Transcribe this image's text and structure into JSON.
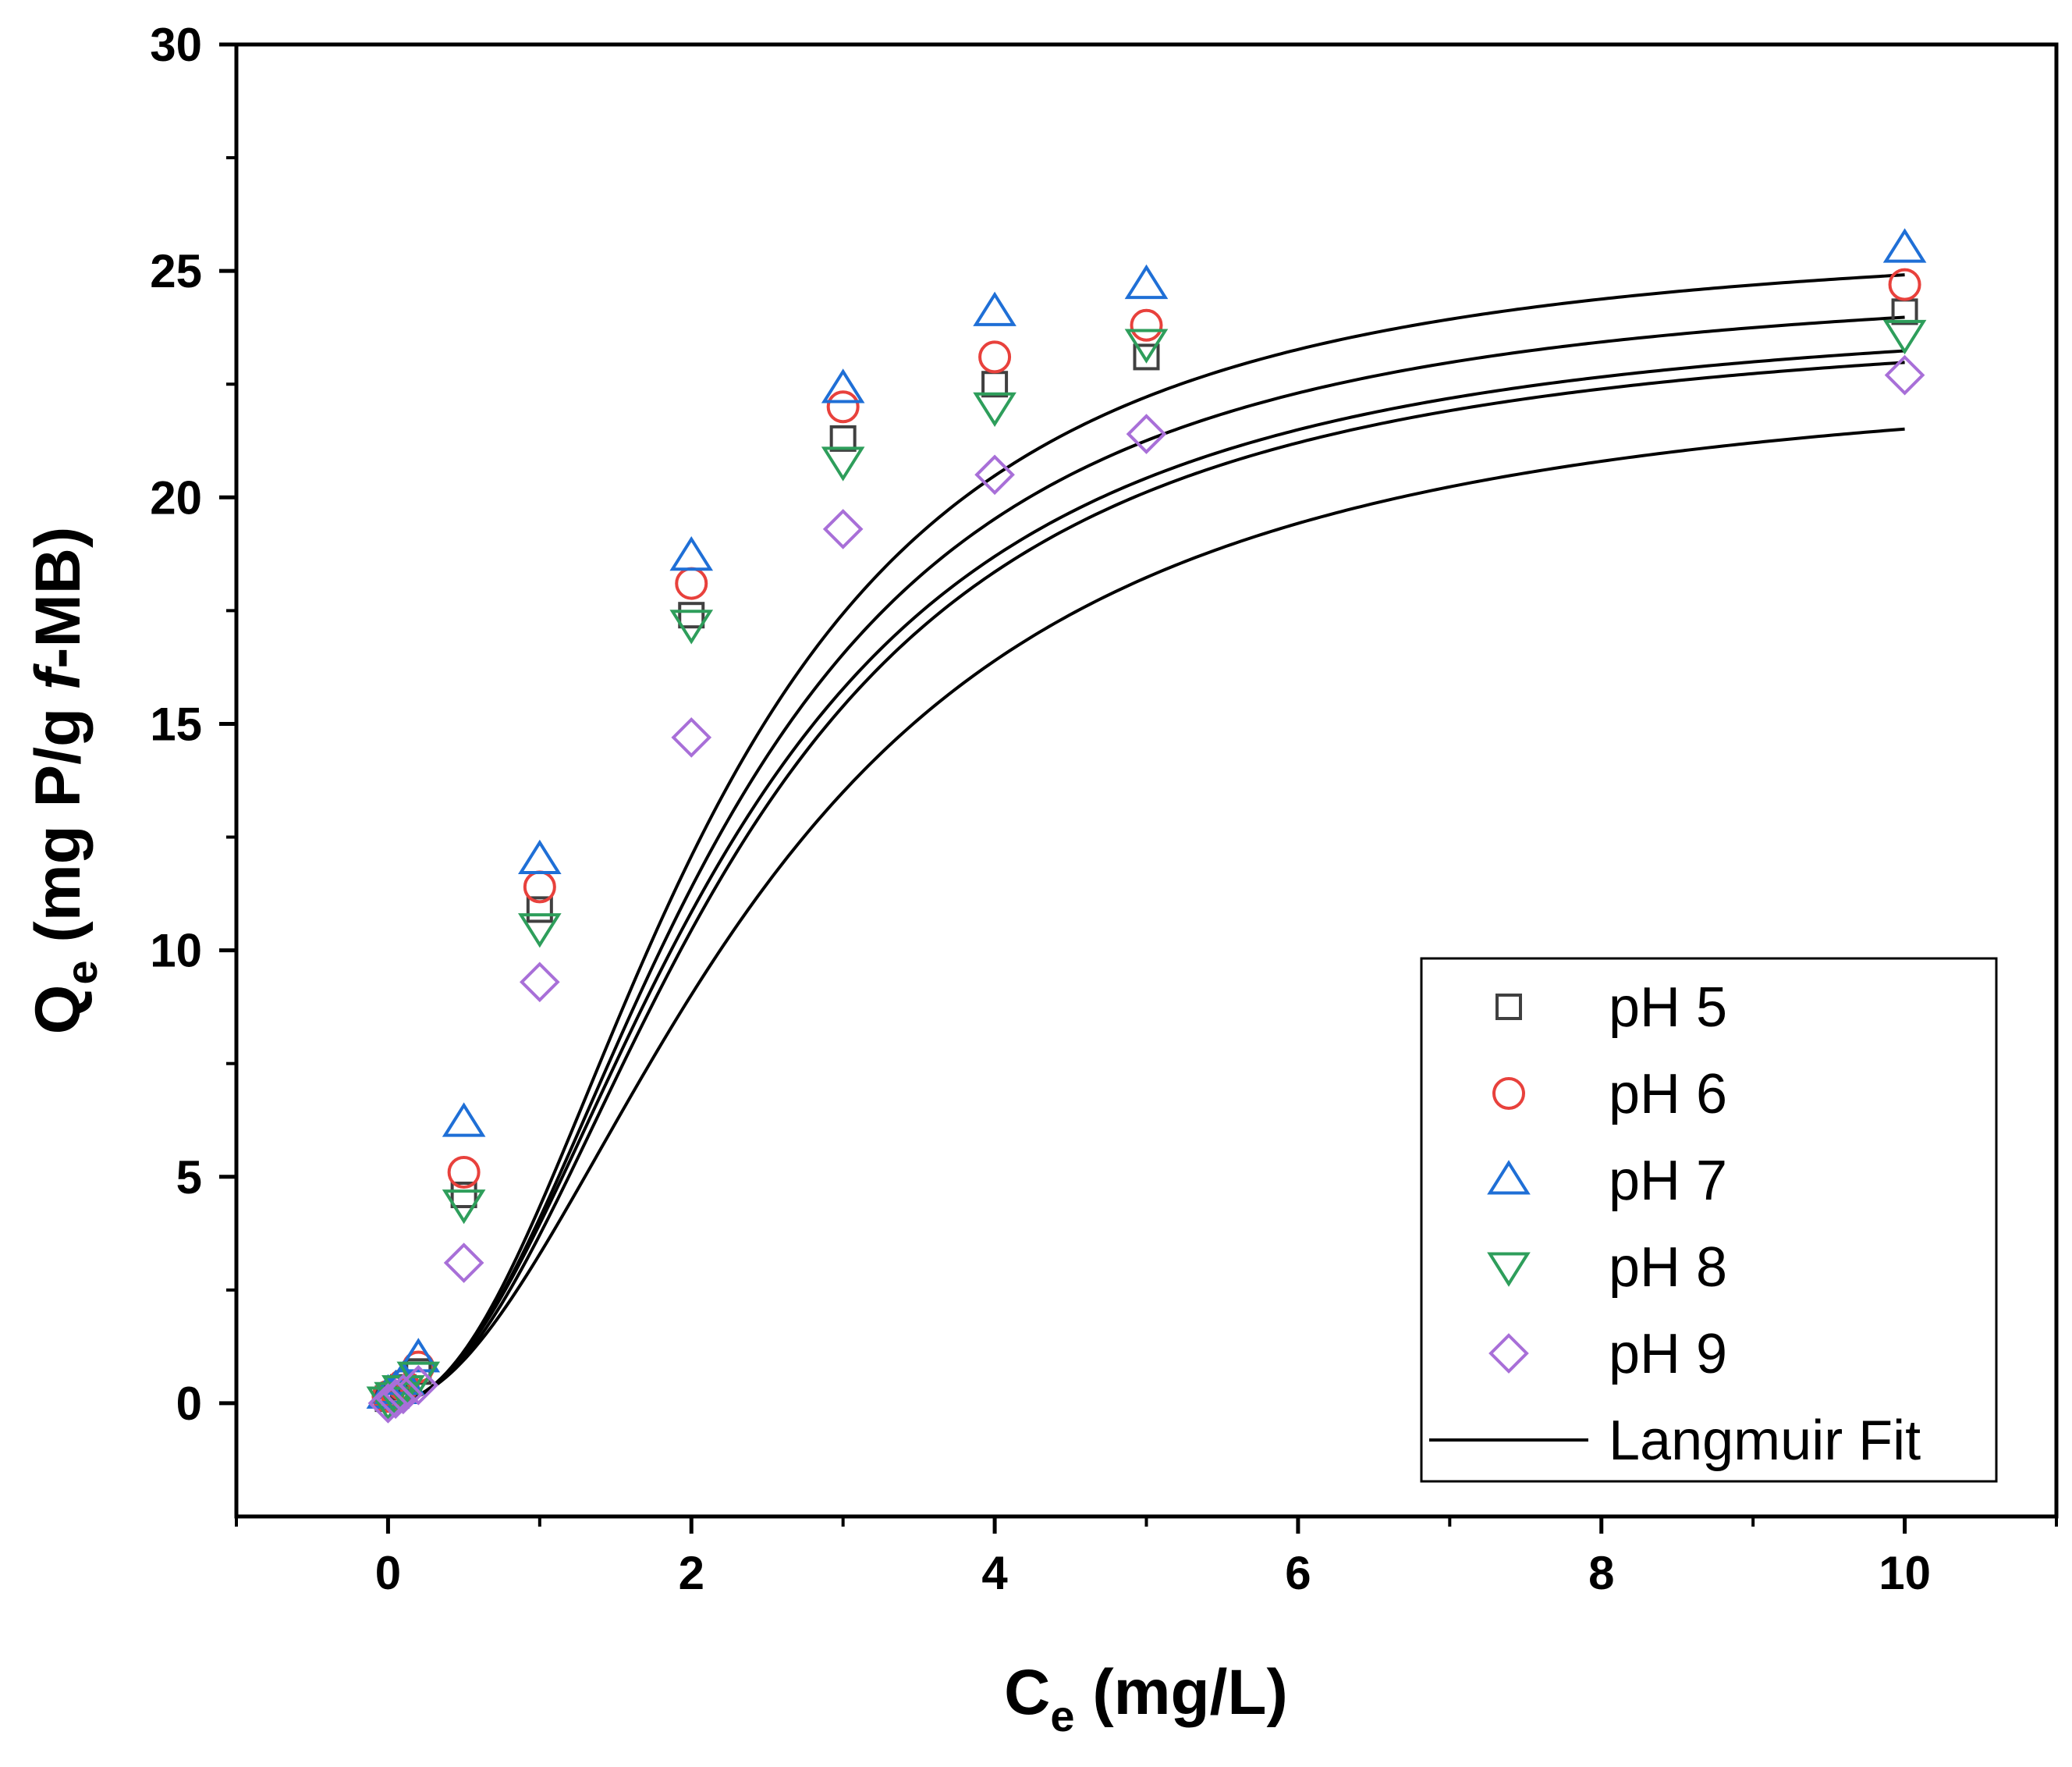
{
  "chart_data": {
    "type": "scatter",
    "title": "",
    "xlabel": {
      "main": "C",
      "sub": "e",
      "rest": " (mg/L)"
    },
    "ylabel": {
      "main": "Q",
      "sub": "e",
      "pre_italic": " (mg P/g ",
      "italic": "f",
      "post_italic": "-MB)"
    },
    "xlim": [
      -1,
      11
    ],
    "ylim": [
      -2.5,
      30
    ],
    "xticks": [
      0,
      2,
      4,
      6,
      8,
      10
    ],
    "yticks": [
      0,
      5,
      10,
      15,
      20,
      25,
      30
    ],
    "xtick_labels": [
      "0",
      "2",
      "4",
      "6",
      "8",
      "10"
    ],
    "ytick_labels": [
      "0",
      "5",
      "10",
      "15",
      "20",
      "25",
      "30"
    ],
    "grid": false,
    "legend_position": "bottom-right",
    "series": [
      {
        "name": "pH 5",
        "marker": "square",
        "color": "#404040",
        "x": [
          0,
          0.05,
          0.1,
          0.2,
          0.5,
          1,
          2,
          3,
          4,
          5,
          10
        ],
        "y": [
          0.1,
          0.2,
          0.35,
          0.7,
          4.6,
          10.9,
          17.4,
          21.3,
          22.5,
          23.1,
          24.1
        ],
        "fit": {
          "qmax": 24.3,
          "k": 0.45,
          "n": 2.05
        }
      },
      {
        "name": "pH 6",
        "marker": "circle",
        "color": "#e8413c",
        "x": [
          0,
          0.05,
          0.1,
          0.2,
          0.5,
          1,
          2,
          3,
          4,
          5,
          10
        ],
        "y": [
          0.15,
          0.25,
          0.4,
          0.8,
          5.1,
          11.4,
          18.1,
          22.0,
          23.1,
          23.8,
          24.7
        ],
        "fit": {
          "qmax": 24.95,
          "k": 0.46,
          "n": 2.1
        }
      },
      {
        "name": "pH 7",
        "marker": "triangle-up",
        "color": "#1f6fd6",
        "x": [
          0,
          0.05,
          0.1,
          0.2,
          0.5,
          1,
          2,
          3,
          4,
          5,
          10
        ],
        "y": [
          0.2,
          0.3,
          0.5,
          1.0,
          6.2,
          12.0,
          18.7,
          22.4,
          24.1,
          24.7,
          25.5
        ],
        "fit": {
          "qmax": 25.85,
          "k": 0.47,
          "n": 2.12
        }
      },
      {
        "name": "pH 8",
        "marker": "triangle-down",
        "color": "#2e9e5b",
        "x": [
          0,
          0.05,
          0.1,
          0.2,
          0.5,
          1,
          2,
          3,
          4,
          5,
          10
        ],
        "y": [
          0.05,
          0.15,
          0.3,
          0.6,
          4.4,
          10.5,
          17.2,
          20.8,
          22.0,
          23.4,
          23.6
        ],
        "fit": {
          "qmax": 24.05,
          "k": 0.44,
          "n": 2.07
        }
      },
      {
        "name": "pH 9",
        "marker": "diamond",
        "color": "#a86fd8",
        "x": [
          0,
          0.05,
          0.1,
          0.2,
          0.5,
          1,
          2,
          3,
          4,
          5,
          10
        ],
        "y": [
          0.0,
          0.1,
          0.2,
          0.4,
          3.1,
          9.3,
          14.7,
          19.3,
          20.5,
          21.4,
          22.7
        ],
        "fit": {
          "qmax": 22.95,
          "k": 0.4,
          "n": 1.95
        }
      }
    ],
    "fit_legend_label": "Langmuir Fit",
    "fit_color": "#000000",
    "fit_xrange": [
      0.05,
      10
    ]
  }
}
